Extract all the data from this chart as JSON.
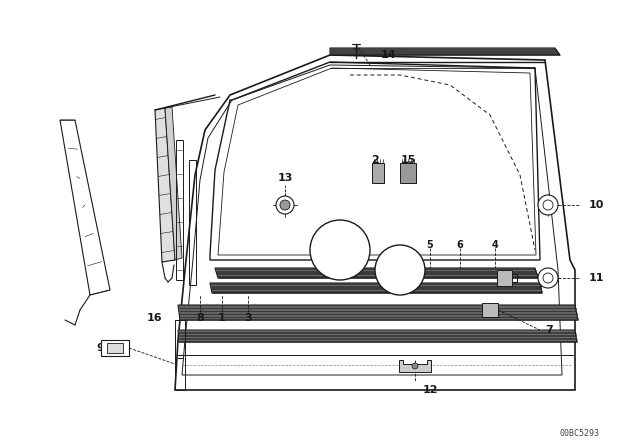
{
  "bg_color": "#ffffff",
  "line_color": "#1a1a1a",
  "footer_text": "00BC5293",
  "fig_w": 6.4,
  "fig_h": 4.48,
  "dpi": 100
}
